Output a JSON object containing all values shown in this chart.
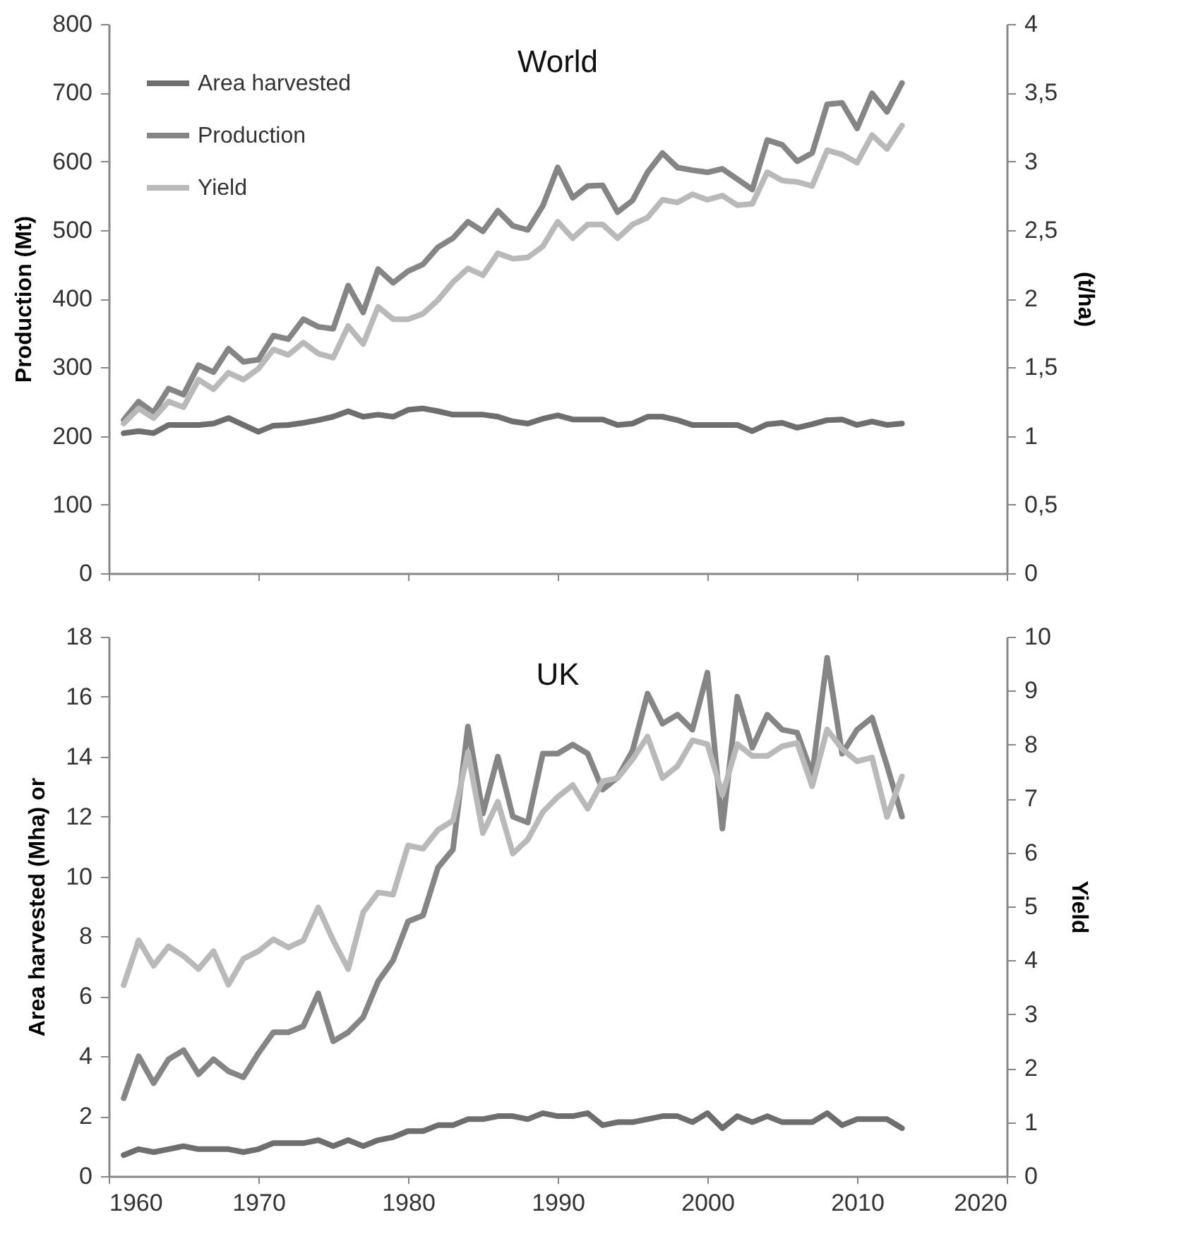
{
  "chart_data": [
    {
      "type": "line",
      "title": "World",
      "ylabel": "Production (Mt)",
      "y2label": "(t/ha)",
      "x": [
        1961,
        1962,
        1963,
        1964,
        1965,
        1966,
        1967,
        1968,
        1969,
        1970,
        1971,
        1972,
        1973,
        1974,
        1975,
        1976,
        1977,
        1978,
        1979,
        1980,
        1981,
        1982,
        1983,
        1984,
        1985,
        1986,
        1987,
        1988,
        1989,
        1990,
        1991,
        1992,
        1993,
        1994,
        1995,
        1996,
        1997,
        1998,
        1999,
        2000,
        2001,
        2002,
        2003,
        2004,
        2005,
        2006,
        2007,
        2008,
        2009,
        2010,
        2011,
        2012,
        2013
      ],
      "series": [
        {
          "name": "Area harvested",
          "color": "#6e6e6e",
          "values": [
            204,
            207,
            204,
            216,
            216,
            216,
            218,
            226,
            216,
            206,
            215,
            216,
            219,
            223,
            228,
            236,
            228,
            231,
            228,
            238,
            240,
            236,
            231,
            231,
            231,
            228,
            221,
            218,
            225,
            230,
            224,
            224,
            224,
            216,
            218,
            228,
            228,
            223,
            216,
            216,
            216,
            216,
            207,
            217,
            219,
            212,
            217,
            223,
            224,
            216,
            221,
            216,
            218
          ]
        },
        {
          "name": "Production",
          "color": "#858585",
          "values": [
            223,
            250,
            234,
            269,
            260,
            303,
            293,
            327,
            308,
            311,
            346,
            341,
            370,
            359,
            356,
            419,
            380,
            443,
            423,
            440,
            450,
            475,
            488,
            512,
            498,
            528,
            506,
            500,
            535,
            591,
            547,
            564,
            565,
            526,
            543,
            584,
            612,
            591,
            587,
            584,
            589,
            574,
            559,
            631,
            624,
            600,
            612,
            683,
            685,
            648,
            699,
            672,
            714
          ]
        },
        {
          "name": "Yield",
          "color": "#b9b9b9",
          "axis": "y2",
          "values": [
            1.09,
            1.2,
            1.13,
            1.25,
            1.21,
            1.41,
            1.34,
            1.46,
            1.41,
            1.49,
            1.63,
            1.59,
            1.68,
            1.6,
            1.57,
            1.8,
            1.67,
            1.94,
            1.85,
            1.85,
            1.89,
            1.99,
            2.12,
            2.22,
            2.17,
            2.33,
            2.29,
            2.3,
            2.38,
            2.56,
            2.44,
            2.54,
            2.54,
            2.44,
            2.54,
            2.59,
            2.72,
            2.7,
            2.76,
            2.72,
            2.75,
            2.68,
            2.69,
            2.92,
            2.86,
            2.85,
            2.82,
            3.08,
            3.05,
            2.99,
            3.19,
            3.09,
            3.26
          ]
        }
      ],
      "xlim": [
        1960,
        2020
      ],
      "xticks": [
        1960,
        1970,
        1980,
        1990,
        2000,
        2010,
        2020
      ],
      "ylim": [
        0,
        800
      ],
      "yticks": [
        0,
        100,
        200,
        300,
        400,
        500,
        600,
        700,
        800
      ],
      "y2lim": [
        0,
        4
      ],
      "y2ticks": [
        0,
        {
          "value": 0.5,
          "label": "0,5"
        },
        1,
        {
          "value": 1.5,
          "label": "1,5"
        },
        2,
        {
          "value": 2.5,
          "label": "2,5"
        },
        3,
        {
          "value": 3.5,
          "label": "3,5"
        },
        4
      ],
      "tick_labels": "y",
      "grid": false,
      "legend": "top left",
      "line_style": "solid"
    },
    {
      "type": "line",
      "title": "UK",
      "ylabel": "Area harvested (Mha) or",
      "y2label": "Yield",
      "x": [
        1961,
        1962,
        1963,
        1964,
        1965,
        1966,
        1967,
        1968,
        1969,
        1970,
        1971,
        1972,
        1973,
        1974,
        1975,
        1976,
        1977,
        1978,
        1979,
        1980,
        1981,
        1982,
        1983,
        1984,
        1985,
        1986,
        1987,
        1988,
        1989,
        1990,
        1991,
        1992,
        1993,
        1994,
        1995,
        1996,
        1997,
        1998,
        1999,
        2000,
        2001,
        2002,
        2003,
        2004,
        2005,
        2006,
        2007,
        2008,
        2009,
        2010,
        2011,
        2012,
        2013
      ],
      "series": [
        {
          "color": "#6e6e6e",
          "values": [
            0.7,
            0.9,
            0.8,
            0.9,
            1.0,
            0.9,
            0.9,
            0.9,
            0.8,
            0.9,
            1.1,
            1.1,
            1.1,
            1.2,
            1.0,
            1.2,
            1.0,
            1.2,
            1.3,
            1.5,
            1.5,
            1.7,
            1.7,
            1.9,
            1.9,
            2.0,
            2.0,
            1.9,
            2.1,
            2.0,
            2.0,
            2.1,
            1.7,
            1.8,
            1.8,
            1.9,
            2.0,
            2.0,
            1.8,
            2.1,
            1.6,
            2.0,
            1.8,
            2.0,
            1.8,
            1.8,
            1.8,
            2.1,
            1.7,
            1.9,
            1.9,
            1.9,
            1.6
          ]
        },
        {
          "color": "#858585",
          "values": [
            2.6,
            4.0,
            3.1,
            3.9,
            4.2,
            3.4,
            3.9,
            3.5,
            3.3,
            4.1,
            4.8,
            4.8,
            5.0,
            6.1,
            4.5,
            4.8,
            5.3,
            6.5,
            7.2,
            8.5,
            8.7,
            10.3,
            10.9,
            15.0,
            12.1,
            14.0,
            12.0,
            11.8,
            14.1,
            14.1,
            14.4,
            14.1,
            12.9,
            13.3,
            14.2,
            16.1,
            15.1,
            15.4,
            14.9,
            16.8,
            11.6,
            16.0,
            14.3,
            15.4,
            14.9,
            14.8,
            13.4,
            17.3,
            14.1,
            14.9,
            15.3,
            13.7,
            12.0
          ]
        },
        {
          "color": "#b9b9b9",
          "axis": "y2",
          "values": [
            3.54,
            4.37,
            3.9,
            4.26,
            4.08,
            3.84,
            4.17,
            3.55,
            4.03,
            4.17,
            4.39,
            4.24,
            4.37,
            4.98,
            4.37,
            3.84,
            4.89,
            5.26,
            5.22,
            6.13,
            6.07,
            6.42,
            6.59,
            7.86,
            6.36,
            6.94,
            5.98,
            6.24,
            6.75,
            7.03,
            7.25,
            6.81,
            7.32,
            7.38,
            7.73,
            8.15,
            7.38,
            7.6,
            8.08,
            8.01,
            7.07,
            8.01,
            7.79,
            7.79,
            7.97,
            8.03,
            7.23,
            8.28,
            7.92,
            7.69,
            7.76,
            6.66,
            7.41
          ]
        }
      ],
      "xlim": [
        1960,
        2020
      ],
      "xticks": [
        1960,
        1970,
        1980,
        1990,
        2000,
        2010,
        2020
      ],
      "ylim": [
        0,
        18
      ],
      "yticks": [
        0,
        2,
        4,
        6,
        8,
        10,
        12,
        14,
        16,
        18
      ],
      "y2lim": [
        0,
        10
      ],
      "y2ticks": [
        0,
        1,
        2,
        3,
        4,
        5,
        6,
        7,
        8,
        9,
        10
      ],
      "grid": false,
      "line_style": "solid"
    }
  ]
}
